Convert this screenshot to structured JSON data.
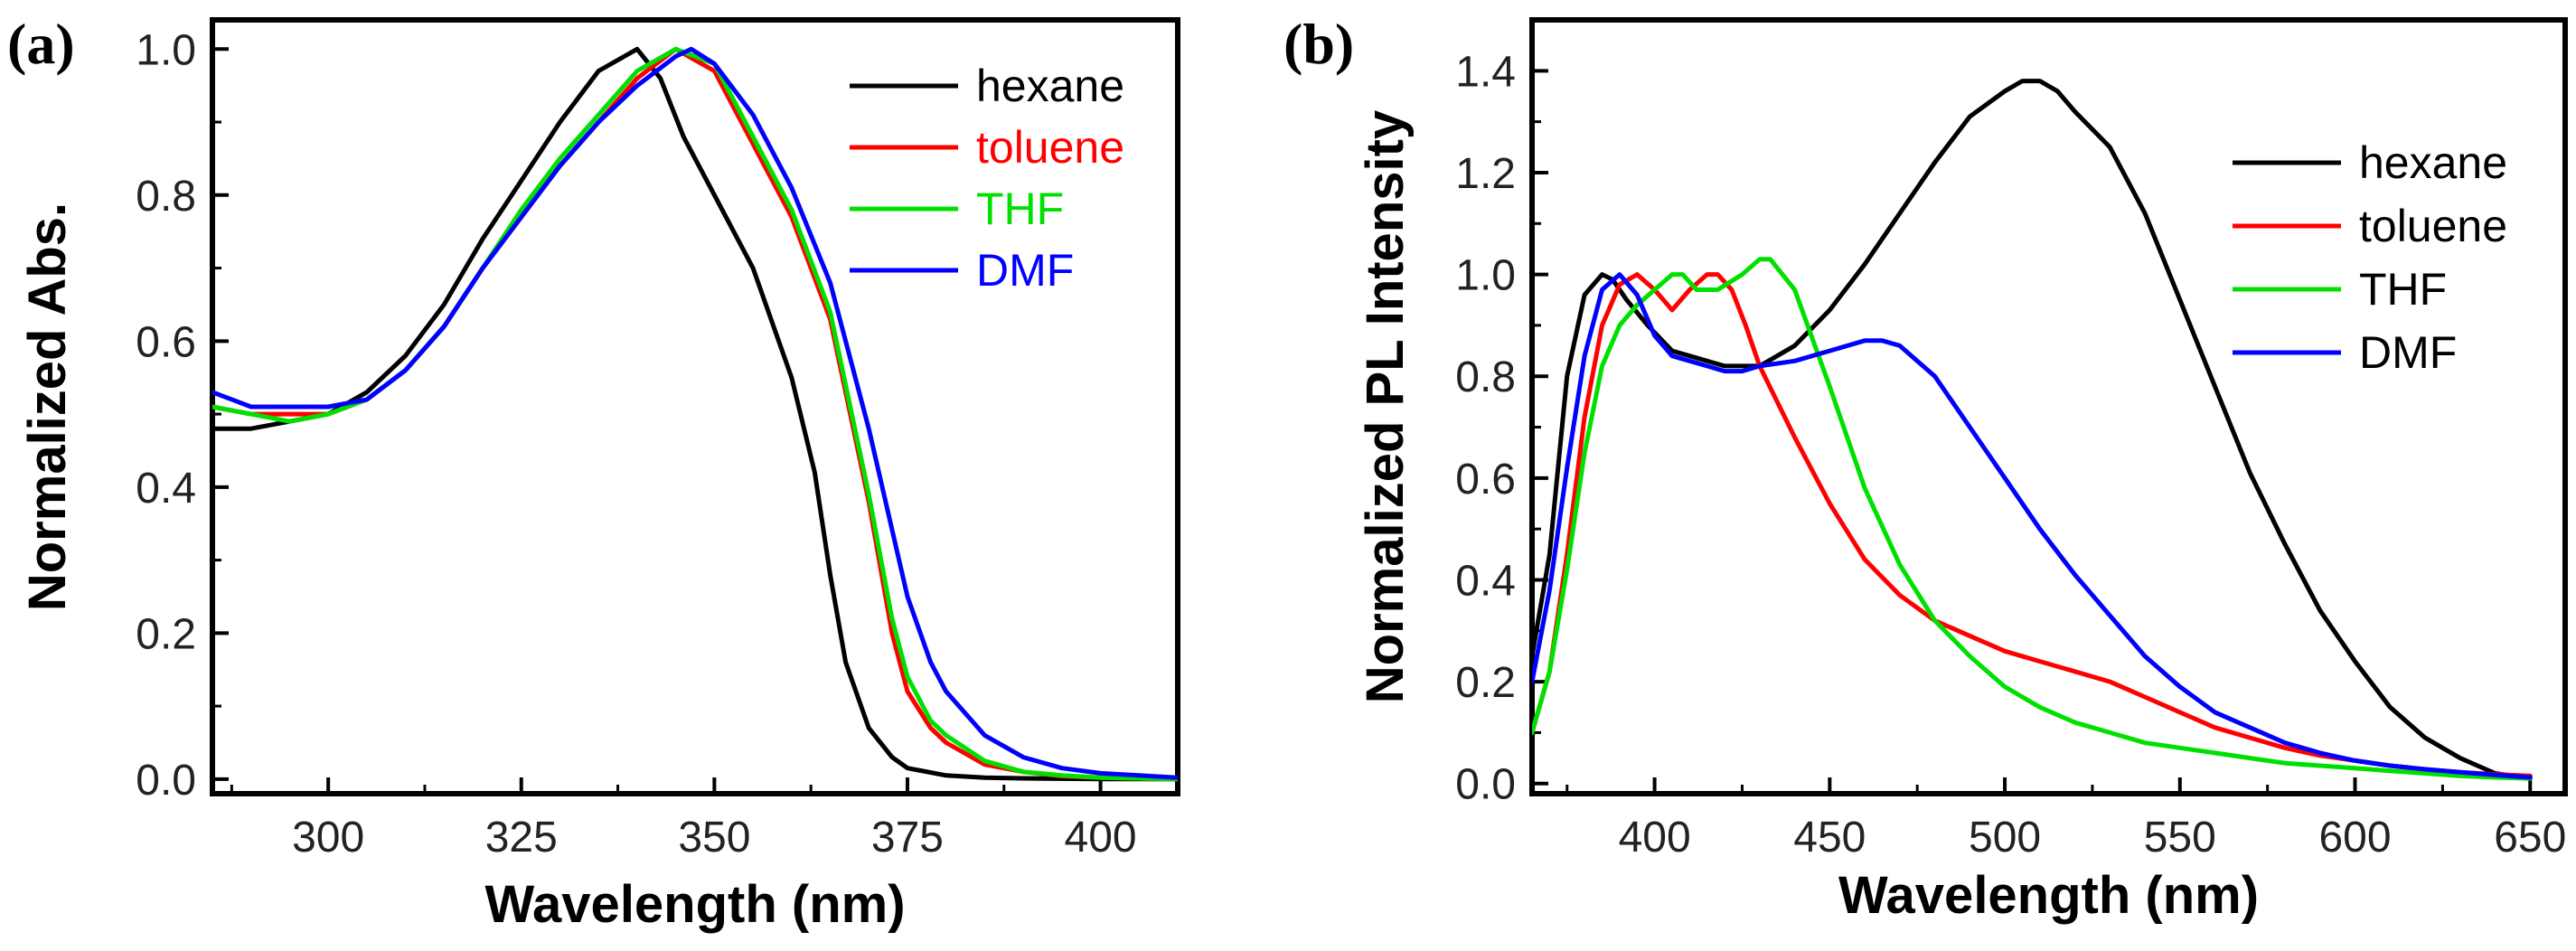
{
  "colors": {
    "hexane": "#000000",
    "toluene": "#ff0000",
    "THF": "#00e000",
    "DMF": "#0000ff"
  },
  "chart_data": [
    {
      "type": "line",
      "panel_label": "(a)",
      "xlabel": "Wavelength (nm)",
      "ylabel": "Normalized Abs.",
      "xlim": [
        285,
        410
      ],
      "ylim": [
        -0.02,
        1.04
      ],
      "xticks": [
        300,
        325,
        350,
        375,
        400
      ],
      "yticks": [
        0.0,
        0.2,
        0.4,
        0.6,
        0.8,
        1.0
      ],
      "ytick_labels": [
        "0.0",
        "0.2",
        "0.4",
        "0.6",
        "0.8",
        "1.0"
      ],
      "legend": "top-right",
      "series": [
        {
          "name": "hexane",
          "x": [
            285,
            290,
            295,
            300,
            305,
            310,
            315,
            320,
            325,
            330,
            335,
            340,
            343,
            346,
            350,
            355,
            360,
            363,
            365,
            367,
            370,
            373,
            375,
            380,
            385,
            390,
            400,
            410
          ],
          "y": [
            0.48,
            0.48,
            0.49,
            0.5,
            0.53,
            0.58,
            0.65,
            0.74,
            0.82,
            0.9,
            0.97,
            1.0,
            0.96,
            0.88,
            0.8,
            0.7,
            0.55,
            0.42,
            0.28,
            0.16,
            0.07,
            0.03,
            0.015,
            0.005,
            0.002,
            0.001,
            0.0,
            0.0
          ]
        },
        {
          "name": "toluene",
          "x": [
            285,
            290,
            295,
            300,
            305,
            310,
            315,
            320,
            325,
            330,
            335,
            340,
            345,
            350,
            355,
            360,
            365,
            370,
            373,
            375,
            378,
            380,
            385,
            390,
            395,
            400,
            410
          ],
          "y": [
            0.51,
            0.5,
            0.5,
            0.5,
            0.52,
            0.56,
            0.62,
            0.7,
            0.77,
            0.84,
            0.9,
            0.96,
            1.0,
            0.97,
            0.87,
            0.77,
            0.63,
            0.38,
            0.2,
            0.12,
            0.07,
            0.05,
            0.02,
            0.01,
            0.004,
            0.002,
            0.0
          ]
        },
        {
          "name": "THF",
          "x": [
            285,
            290,
            295,
            300,
            305,
            310,
            315,
            320,
            325,
            330,
            335,
            340,
            345,
            350,
            355,
            360,
            365,
            370,
            373,
            375,
            378,
            380,
            385,
            390,
            395,
            400,
            410
          ],
          "y": [
            0.51,
            0.5,
            0.49,
            0.5,
            0.52,
            0.56,
            0.62,
            0.7,
            0.78,
            0.85,
            0.91,
            0.97,
            1.0,
            0.98,
            0.88,
            0.78,
            0.64,
            0.39,
            0.22,
            0.14,
            0.08,
            0.06,
            0.025,
            0.01,
            0.005,
            0.002,
            0.0
          ]
        },
        {
          "name": "DMF",
          "x": [
            285,
            290,
            295,
            300,
            305,
            310,
            315,
            320,
            325,
            330,
            335,
            340,
            345,
            347,
            350,
            355,
            360,
            365,
            370,
            375,
            378,
            380,
            385,
            390,
            395,
            400,
            410
          ],
          "y": [
            0.53,
            0.51,
            0.51,
            0.51,
            0.52,
            0.56,
            0.62,
            0.7,
            0.77,
            0.84,
            0.9,
            0.95,
            0.99,
            1.0,
            0.98,
            0.91,
            0.81,
            0.68,
            0.48,
            0.25,
            0.16,
            0.12,
            0.06,
            0.03,
            0.015,
            0.008,
            0.002
          ]
        }
      ]
    },
    {
      "type": "line",
      "panel_label": "(b)",
      "xlabel": "Wavelength (nm)",
      "ylabel": "Normalized PL Intensity",
      "xlim": [
        365,
        660
      ],
      "ylim": [
        -0.02,
        1.5
      ],
      "xticks": [
        400,
        450,
        500,
        550,
        600,
        650
      ],
      "yticks": [
        0.0,
        0.2,
        0.4,
        0.6,
        0.8,
        1.0,
        1.2,
        1.4
      ],
      "ytick_labels": [
        "0.0",
        "0.2",
        "0.4",
        "0.6",
        "0.8",
        "1.0",
        "1.2",
        "1.4"
      ],
      "legend": "top-right",
      "series": [
        {
          "name": "hexane",
          "x": [
            365,
            370,
            375,
            380,
            385,
            388,
            392,
            398,
            405,
            410,
            420,
            430,
            440,
            450,
            460,
            470,
            480,
            490,
            500,
            505,
            510,
            515,
            520,
            530,
            540,
            550,
            560,
            570,
            580,
            590,
            600,
            610,
            620,
            630,
            640,
            650
          ],
          "y": [
            0.25,
            0.45,
            0.8,
            0.96,
            1.0,
            0.99,
            0.95,
            0.9,
            0.85,
            0.84,
            0.82,
            0.82,
            0.86,
            0.93,
            1.02,
            1.12,
            1.22,
            1.31,
            1.36,
            1.38,
            1.38,
            1.36,
            1.32,
            1.25,
            1.12,
            0.95,
            0.78,
            0.61,
            0.47,
            0.34,
            0.24,
            0.15,
            0.09,
            0.05,
            0.02,
            0.01
          ]
        },
        {
          "name": "toluene",
          "x": [
            365,
            370,
            375,
            380,
            385,
            390,
            395,
            400,
            405,
            410,
            415,
            418,
            422,
            426,
            430,
            440,
            450,
            460,
            470,
            480,
            490,
            500,
            510,
            520,
            530,
            540,
            550,
            560,
            570,
            580,
            590,
            600,
            610,
            620,
            630,
            640,
            650
          ],
          "y": [
            0.1,
            0.22,
            0.45,
            0.72,
            0.9,
            0.98,
            1.0,
            0.97,
            0.93,
            0.97,
            1.0,
            1.0,
            0.97,
            0.9,
            0.82,
            0.68,
            0.55,
            0.44,
            0.37,
            0.32,
            0.29,
            0.26,
            0.24,
            0.22,
            0.2,
            0.17,
            0.14,
            0.11,
            0.09,
            0.07,
            0.055,
            0.045,
            0.035,
            0.028,
            0.022,
            0.018,
            0.015
          ]
        },
        {
          "name": "THF",
          "x": [
            365,
            370,
            375,
            380,
            385,
            390,
            395,
            400,
            405,
            408,
            412,
            418,
            425,
            430,
            433,
            440,
            450,
            460,
            470,
            480,
            490,
            500,
            510,
            520,
            530,
            540,
            550,
            560,
            570,
            580,
            590,
            600,
            610,
            620,
            630,
            640,
            650
          ],
          "y": [
            0.1,
            0.22,
            0.42,
            0.65,
            0.82,
            0.9,
            0.94,
            0.97,
            1.0,
            1.0,
            0.97,
            0.97,
            1.0,
            1.03,
            1.03,
            0.97,
            0.78,
            0.58,
            0.43,
            0.32,
            0.25,
            0.19,
            0.15,
            0.12,
            0.1,
            0.08,
            0.07,
            0.06,
            0.05,
            0.04,
            0.035,
            0.03,
            0.025,
            0.02,
            0.015,
            0.012,
            0.01
          ]
        },
        {
          "name": "DMF",
          "x": [
            365,
            370,
            375,
            380,
            385,
            390,
            395,
            400,
            405,
            410,
            415,
            420,
            425,
            430,
            440,
            450,
            460,
            465,
            470,
            480,
            490,
            500,
            510,
            520,
            530,
            540,
            550,
            560,
            570,
            580,
            590,
            600,
            610,
            620,
            630,
            640,
            650
          ],
          "y": [
            0.2,
            0.38,
            0.62,
            0.84,
            0.97,
            1.0,
            0.96,
            0.88,
            0.84,
            0.83,
            0.82,
            0.81,
            0.81,
            0.82,
            0.83,
            0.85,
            0.87,
            0.87,
            0.86,
            0.8,
            0.7,
            0.6,
            0.5,
            0.41,
            0.33,
            0.25,
            0.19,
            0.14,
            0.11,
            0.08,
            0.06,
            0.045,
            0.035,
            0.028,
            0.022,
            0.017,
            0.012
          ]
        }
      ]
    }
  ]
}
